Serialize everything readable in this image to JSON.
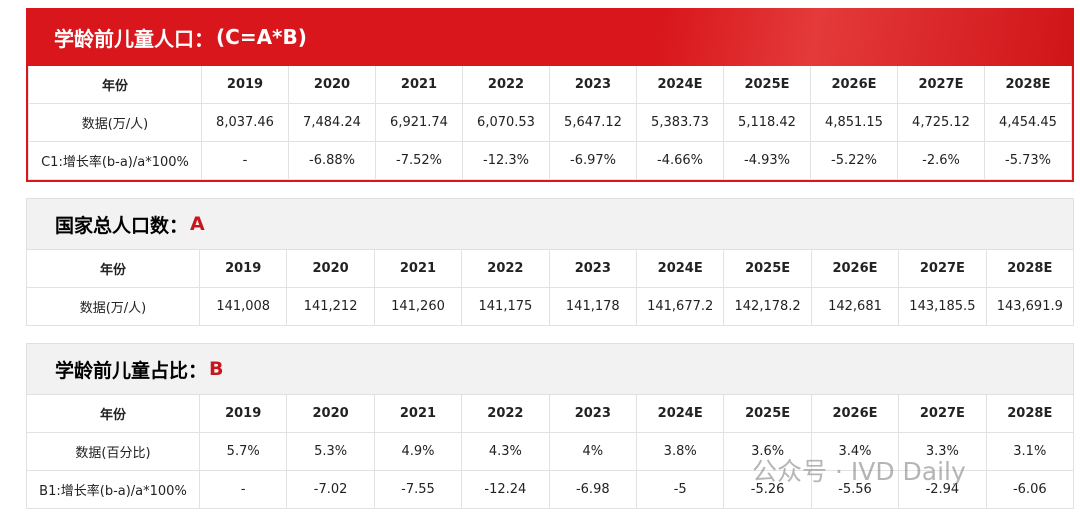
{
  "sections": [
    {
      "title": "学龄前儿童人口：",
      "title_tag": "(C=A*B)",
      "header": [
        "年份",
        "2019",
        "2020",
        "2021",
        "2022",
        "2023",
        "2024E",
        "2025E",
        "2026E",
        "2027E",
        "2028E"
      ],
      "rows": [
        [
          "数据(万/人)",
          "8,037.46",
          "7,484.24",
          "6,921.74",
          "6,070.53",
          "5,647.12",
          "5,383.73",
          "5,118.42",
          "4,851.15",
          "4,725.12",
          "4,454.45"
        ],
        [
          "C1:增长率(b-a)/a*100%",
          "-",
          "-6.88%",
          "-7.52%",
          "-12.3%",
          "-6.97%",
          "-4.66%",
          "-4.93%",
          "-5.22%",
          "-2.6%",
          "-5.73%"
        ]
      ]
    },
    {
      "title": "国家总人口数：",
      "title_tag": "A",
      "header": [
        "年份",
        "2019",
        "2020",
        "2021",
        "2022",
        "2023",
        "2024E",
        "2025E",
        "2026E",
        "2027E",
        "2028E"
      ],
      "rows": [
        [
          "数据(万/人)",
          "141,008",
          "141,212",
          "141,260",
          "141,175",
          "141,178",
          "141,677.2",
          "142,178.2",
          "142,681",
          "143,185.5",
          "143,691.9"
        ]
      ]
    },
    {
      "title": "学龄前儿童占比：",
      "title_tag": "B",
      "header": [
        "年份",
        "2019",
        "2020",
        "2021",
        "2022",
        "2023",
        "2024E",
        "2025E",
        "2026E",
        "2027E",
        "2028E"
      ],
      "rows": [
        [
          "数据(百分比)",
          "5.7%",
          "5.3%",
          "4.9%",
          "4.3%",
          "4%",
          "3.8%",
          "3.6%",
          "3.4%",
          "3.3%",
          "3.1%"
        ],
        [
          "B1:增长率(b-a)/a*100%",
          "-",
          "-7.02",
          "-7.55",
          "-12.24",
          "-6.98",
          "-5",
          "-5.26",
          "-5.56",
          "-2.94",
          "-6.06"
        ]
      ]
    }
  ],
  "watermark": "公众号 · IVD Daily"
}
